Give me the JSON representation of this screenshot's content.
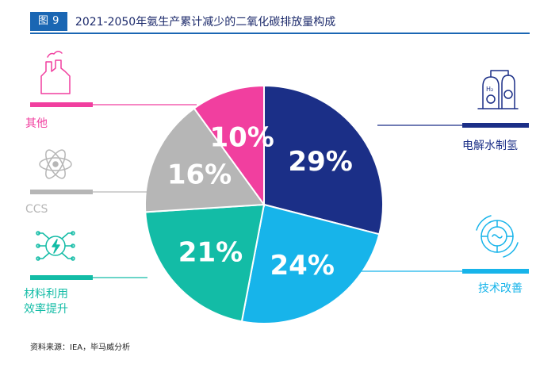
{
  "figure": {
    "badge": "图 9",
    "title": "2021-2050年氨生产累计减少的二氧化碳排放量构成",
    "source": "资料来源：IEA，毕马威分析"
  },
  "chart_data": {
    "type": "pie",
    "slices": [
      {
        "label": "电解水制氢",
        "value": 29,
        "value_label": "29%",
        "color": "#1b2f87",
        "icon": "hydrogen-electrolysis-icon"
      },
      {
        "label": "技术改善",
        "value": 24,
        "value_label": "24%",
        "color": "#17b4ea",
        "icon": "tech-gear-icon"
      },
      {
        "label": "材料利用\n效率提升",
        "label_lines": [
          "材料利用",
          "效率提升"
        ],
        "value": 21,
        "value_label": "21%",
        "color": "#13bca6",
        "icon": "circuit-bolt-icon"
      },
      {
        "label": "CCS",
        "value": 16,
        "value_label": "16%",
        "color": "#b6b6b6",
        "icon": "atom-icon"
      },
      {
        "label": "其他",
        "value": 10,
        "value_label": "10%",
        "color": "#f13f9f",
        "icon": "factory-icon"
      }
    ]
  }
}
